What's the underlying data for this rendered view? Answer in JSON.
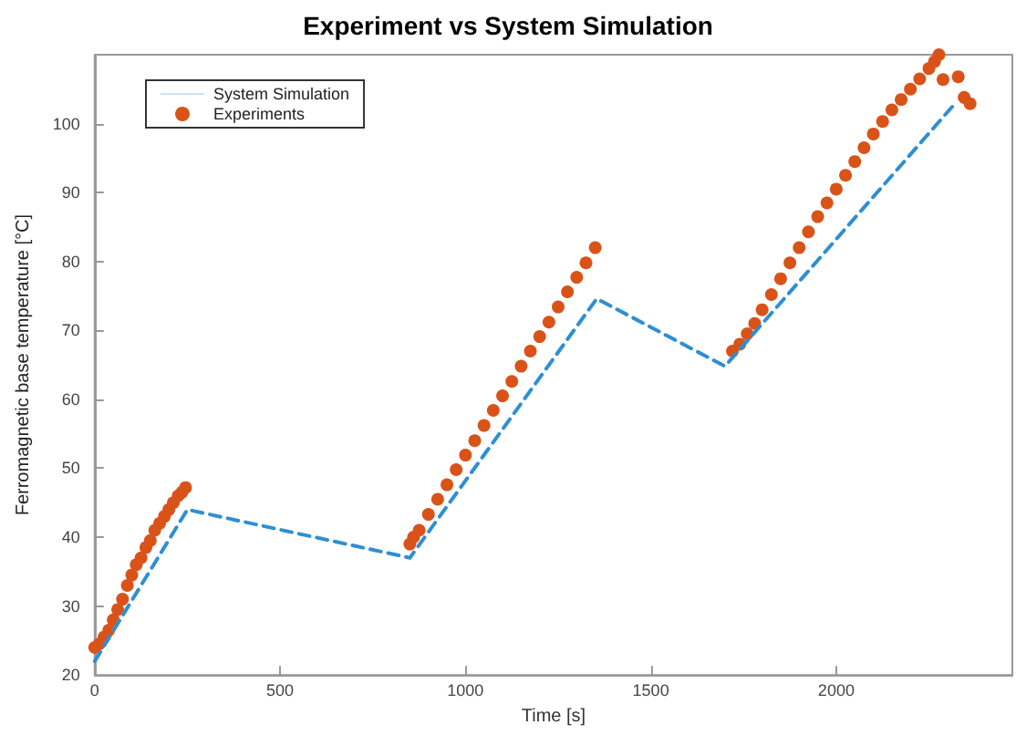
{
  "chart_data": {
    "type": "line",
    "title": "Experiment vs System Simulation",
    "xlabel": "Time [s]",
    "ylabel": "Ferromagnetic base temperature [°C]",
    "xlim": [
      0,
      2475
    ],
    "xticks": [
      0,
      500,
      1000,
      1500,
      2000
    ],
    "ylim": [
      20,
      110
    ],
    "yticks": [
      20,
      30,
      40,
      50,
      60,
      70,
      80,
      90,
      100
    ],
    "grid": false,
    "legend": "top left",
    "series": [
      {
        "name": "System Simulation",
        "color": "#2e8fd3",
        "line_style": "dashed",
        "marker": "none",
        "x": [
          0,
          250,
          850,
          1354,
          1700,
          2320
        ],
        "values": [
          22,
          44,
          37,
          74.6,
          64.8,
          102.9
        ]
      },
      {
        "name": "Experiments",
        "type": "scatter",
        "color": "#d95319",
        "marker": "circle",
        "x": [
          0,
          12,
          25,
          38,
          50,
          62,
          75,
          88,
          100,
          112,
          125,
          138,
          150,
          162,
          175,
          188,
          200,
          212,
          225,
          235,
          245,
          850,
          860,
          875,
          900,
          925,
          950,
          975,
          1000,
          1025,
          1050,
          1075,
          1100,
          1125,
          1150,
          1175,
          1200,
          1225,
          1250,
          1275,
          1300,
          1325,
          1350,
          1720,
          1740,
          1760,
          1780,
          1800,
          1825,
          1850,
          1875,
          1900,
          1925,
          1950,
          1975,
          2000,
          2025,
          2050,
          2075,
          2100,
          2125,
          2150,
          2175,
          2200,
          2225,
          2250,
          2265,
          2277,
          2288,
          2329,
          2345,
          2361
        ],
        "values": [
          24,
          24.5,
          25.5,
          26.5,
          28,
          29.5,
          31,
          33,
          34.5,
          36,
          37,
          38.5,
          39.5,
          41,
          42,
          43,
          44,
          45,
          46,
          46.5,
          47.2,
          39,
          40,
          41,
          43.3,
          45.5,
          47.6,
          49.8,
          51.9,
          54,
          56.2,
          58.4,
          60.5,
          62.6,
          64.8,
          67,
          69.1,
          71.2,
          73.4,
          75.6,
          77.7,
          79.8,
          82,
          67,
          68,
          69.5,
          71,
          73,
          75.2,
          77.5,
          79.8,
          82,
          84.3,
          86.5,
          88.5,
          90.5,
          92.5,
          94.5,
          96.5,
          98.5,
          100.3,
          102,
          103.5,
          105,
          106.5,
          108,
          109,
          110,
          106.4,
          106.8,
          103.8,
          102.9
        ]
      }
    ]
  }
}
